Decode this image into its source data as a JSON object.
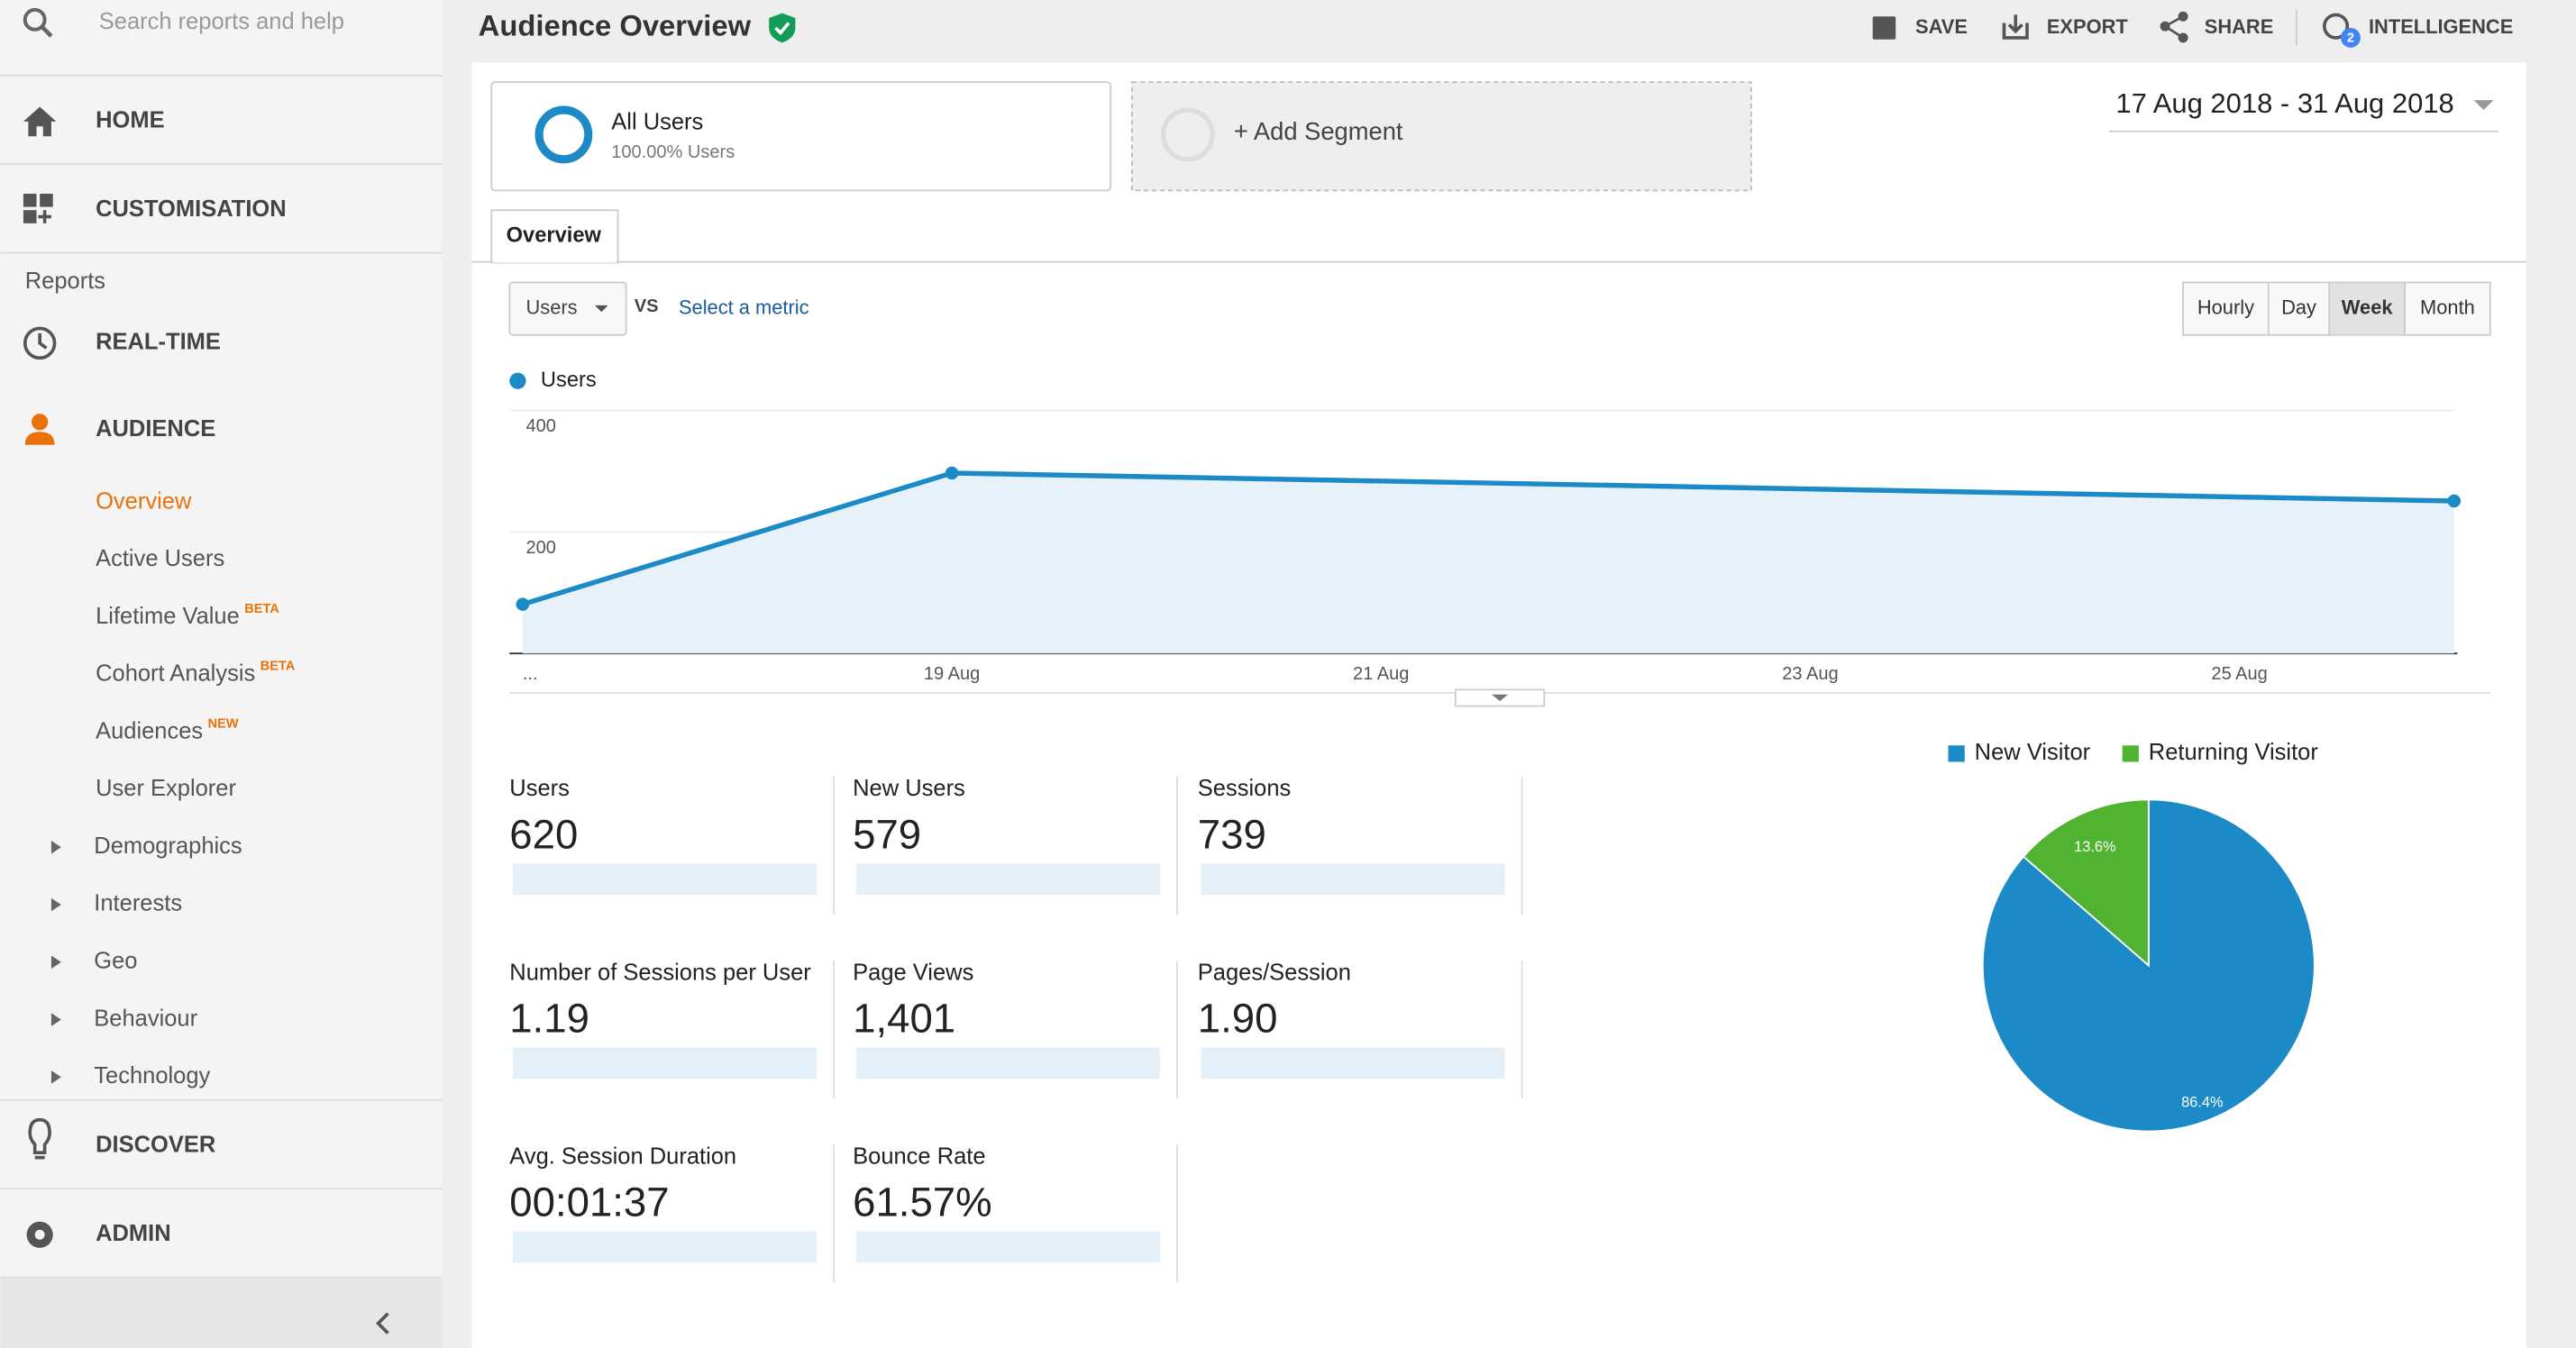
{
  "search_placeholder": "Search reports and help",
  "nav": {
    "home": "HOME",
    "customisation": "CUSTOMISATION",
    "reports": "Reports",
    "realtime": "REAL-TIME",
    "audience": "AUDIENCE",
    "audience_items": [
      {
        "label": "Overview"
      },
      {
        "label": "Active Users"
      },
      {
        "label": "Lifetime Value",
        "badge": "BETA"
      },
      {
        "label": "Cohort Analysis",
        "badge": "BETA"
      },
      {
        "label": "Audiences",
        "badge": "NEW"
      },
      {
        "label": "User Explorer"
      },
      {
        "label": "Demographics"
      },
      {
        "label": "Interests"
      },
      {
        "label": "Geo"
      },
      {
        "label": "Behaviour"
      },
      {
        "label": "Technology"
      }
    ],
    "discover": "DISCOVER",
    "admin": "ADMIN"
  },
  "header": {
    "title": "Audience Overview",
    "actions": [
      "SAVE",
      "EXPORT",
      "SHARE",
      "INTELLIGENCE"
    ],
    "intelligence_badge": "2"
  },
  "segments": {
    "name": "All Users",
    "detail": "100.00% Users",
    "add": "+ Add Segment"
  },
  "date_range": "17 Aug 2018 - 31 Aug 2018",
  "tab": "Overview",
  "metric_select": "Users",
  "vs": "VS",
  "select_metric": "Select a metric",
  "granularity": [
    "Hourly",
    "Day",
    "Week",
    "Month"
  ],
  "chart_data": [
    {
      "type": "line",
      "x": [
        17,
        19,
        26
      ],
      "series": [
        {
          "name": "Users",
          "color": "#1b8ac6",
          "values": [
            81,
            297,
            251
          ]
        }
      ],
      "xlim": [
        17,
        26
      ],
      "xticks": [
        {
          "value": 17,
          "label": "..."
        },
        {
          "value": 19,
          "label": "19 Aug"
        },
        {
          "value": 21,
          "label": "21 Aug"
        },
        {
          "value": 23,
          "label": "23 Aug"
        },
        {
          "value": 25,
          "label": "25 Aug"
        }
      ],
      "ylim": [
        0,
        400
      ],
      "yticks": [
        200,
        400
      ],
      "grid": true
    },
    {
      "type": "pie",
      "categories": [
        "New Visitor",
        "Returning Visitor"
      ],
      "values": [
        86.4,
        13.6
      ],
      "value_labels": [
        "86.4%",
        "13.6%"
      ],
      "colors": [
        "#1b8ac6",
        "#50b432"
      ]
    }
  ],
  "metrics": [
    {
      "label": "Users",
      "value": "620"
    },
    {
      "label": "New Users",
      "value": "579"
    },
    {
      "label": "Sessions",
      "value": "739"
    },
    {
      "label": "Number of Sessions per User",
      "value": "1.19"
    },
    {
      "label": "Page Views",
      "value": "1,401"
    },
    {
      "label": "Pages/Session",
      "value": "1.90"
    },
    {
      "label": "Avg. Session Duration",
      "value": "00:01:37"
    },
    {
      "label": "Bounce Rate",
      "value": "61.57%"
    }
  ]
}
